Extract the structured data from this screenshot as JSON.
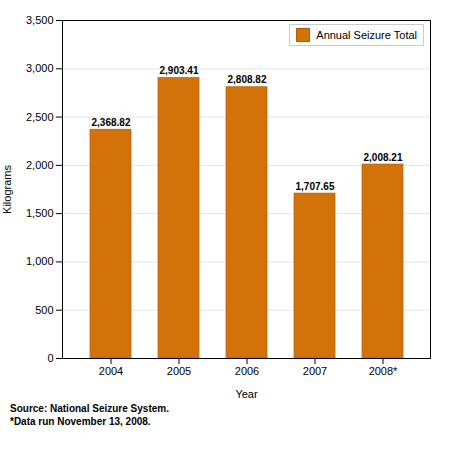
{
  "chart_data": {
    "type": "bar",
    "categories": [
      "2004",
      "2005",
      "2006",
      "2007",
      "2008*"
    ],
    "series": [
      {
        "name": "Annual Seizure Total",
        "color": "#D4720A",
        "values": [
          2368.82,
          2903.41,
          2808.82,
          1707.65,
          2008.21
        ]
      }
    ],
    "value_labels": [
      "2,368.82",
      "2,903.41",
      "2,808.82",
      "1,707.65",
      "2,008.21"
    ],
    "data_labels": true,
    "xlabel": "Year",
    "ylabel": "Kilograms",
    "ylim": [
      0,
      3500
    ],
    "yticks": [
      0,
      500,
      {
        "value": 1000,
        "label": "1,000"
      },
      {
        "value": 1500,
        "label": "1,500"
      },
      {
        "value": 2000,
        "label": "2,000"
      },
      {
        "value": 2500,
        "label": "2,500"
      },
      {
        "value": 3000,
        "label": "3,000"
      },
      {
        "value": 3500,
        "label": "3,500"
      }
    ],
    "grid": true,
    "legend": "upper right",
    "annotations": [
      "Source: National Seizure System.",
      "*Data run November 13, 2008."
    ]
  }
}
